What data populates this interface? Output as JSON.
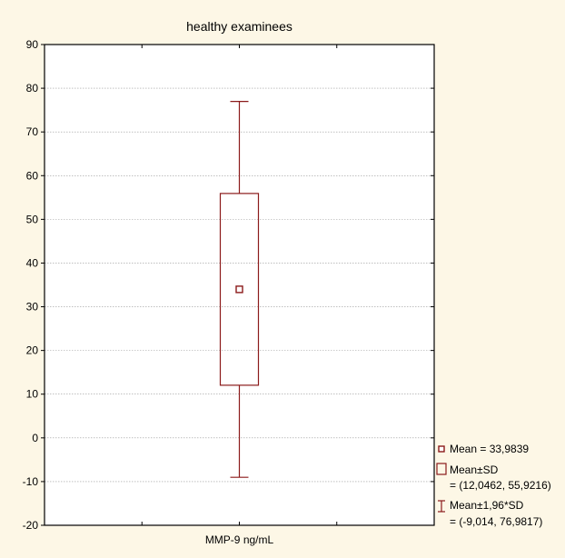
{
  "chart_data": {
    "type": "box",
    "title": "healthy examinees",
    "xlabel": "",
    "ylabel": "",
    "categories": [
      "MMP-9 ng/mL"
    ],
    "ylim": [
      -20,
      90
    ],
    "yticks": [
      -20,
      -10,
      0,
      10,
      20,
      30,
      40,
      50,
      60,
      70,
      80,
      90
    ],
    "ytick_labels": [
      "-20",
      "-10",
      "0",
      "10",
      "20",
      "30",
      "40",
      "50",
      "60",
      "70",
      "80",
      "90"
    ],
    "grid": true,
    "legend_position": "bottom-right",
    "series": [
      {
        "category": "MMP-9 ng/mL",
        "mean": 33.9839,
        "box_low": 12.0462,
        "box_high": 55.9216,
        "whisker_low": -9.014,
        "whisker_high": 76.9817
      }
    ],
    "legend": [
      {
        "symbol": "point",
        "label": "Mean = 33,9839"
      },
      {
        "symbol": "box",
        "label": "Mean±SD",
        "detail": "= (12,0462, 55,9216)"
      },
      {
        "symbol": "whisker",
        "label": "Mean±1,96*SD",
        "detail": "= (-9,014, 76,9817)"
      }
    ],
    "colors": {
      "background": "#fdf7e6",
      "plot_background": "#ffffff",
      "series": "#8b1a1a",
      "grid": "#9a9a9a",
      "axis": "#000000"
    }
  }
}
